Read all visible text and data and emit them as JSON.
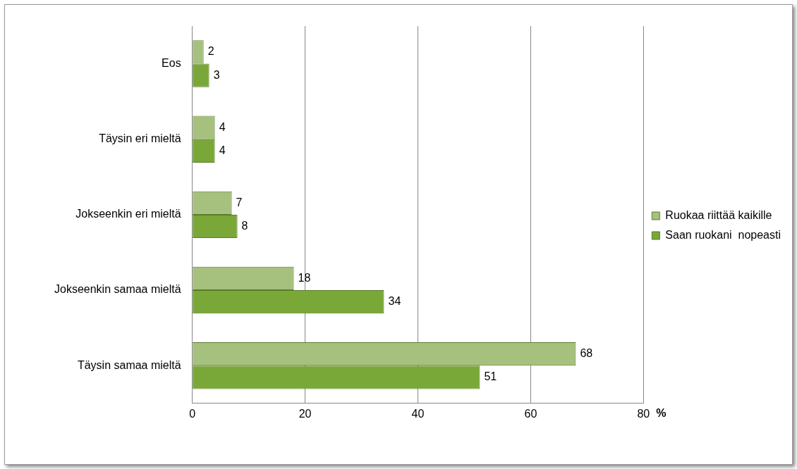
{
  "chart_data": {
    "type": "bar",
    "orientation": "horizontal",
    "categories": [
      "Eos",
      "Täysin eri mieltä",
      "Jokseenkin eri mieltä",
      "Jokseenkin samaa mieltä",
      "Täysin samaa mieltä"
    ],
    "series": [
      {
        "name": "Ruokaa riittää kaikille",
        "color": "#a6c07e",
        "values": [
          2,
          4,
          7,
          18,
          68
        ]
      },
      {
        "name": "Saan ruokani  nopeasti",
        "color": "#7aa838",
        "values": [
          3,
          4,
          8,
          34,
          51
        ]
      }
    ],
    "xlim": [
      0,
      80
    ],
    "xticks": [
      0,
      20,
      40,
      60,
      80
    ],
    "xlabel": "%",
    "grid": "x",
    "legend": "right",
    "data_labels": true
  }
}
